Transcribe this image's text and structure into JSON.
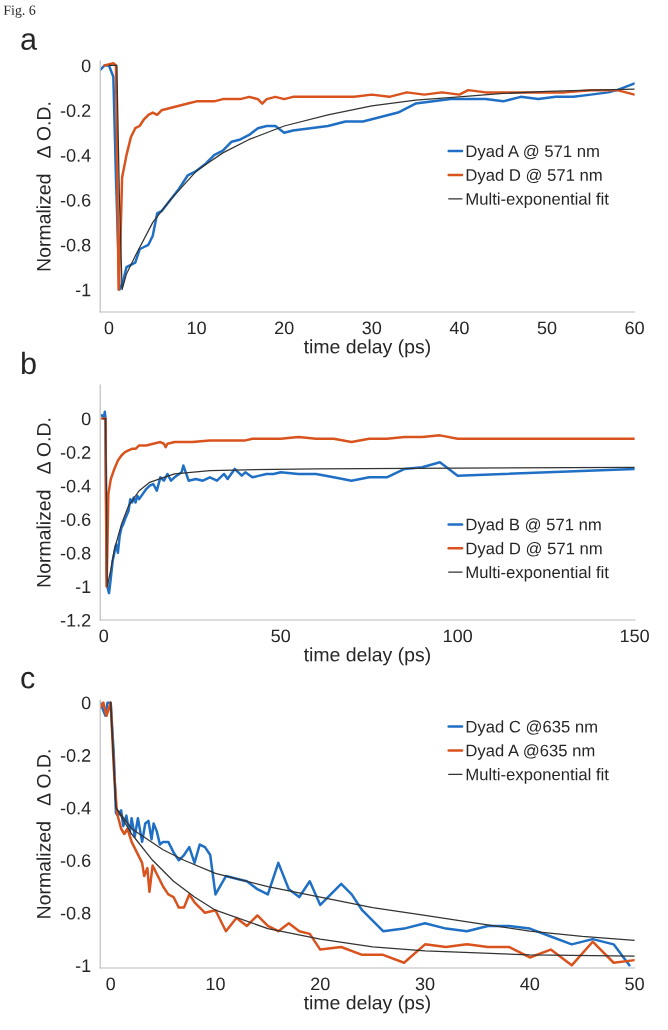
{
  "chart_data": [
    {
      "type": "line",
      "title": "a",
      "annotations": [
        "Fig. 6"
      ],
      "xlabel": "time delay (ps)",
      "ylabel": "Normalized   Δ O.D.",
      "xlim": [
        -1,
        60
      ],
      "ylim": [
        -1.1,
        0.02
      ],
      "xticks": [
        0,
        10,
        20,
        30,
        40,
        50,
        60
      ],
      "yticks": [
        0,
        -0.2,
        -0.4,
        -0.6,
        -0.8,
        -1
      ],
      "grid": false,
      "legend": "right",
      "series": [
        {
          "name": "Dyad A @ 571 nm",
          "color": "#1f6fc5",
          "x": [
            -1,
            -0.5,
            0,
            0.5,
            0.8,
            1.2,
            1.5,
            2,
            3,
            3.5,
            4,
            4.5,
            5,
            5.5,
            6,
            7,
            8,
            9,
            10,
            11,
            12,
            13,
            14,
            15,
            16,
            17,
            18,
            19,
            20,
            21,
            23,
            25,
            27,
            29,
            31,
            33,
            35,
            37,
            39,
            41,
            43,
            45,
            47,
            49,
            51,
            53,
            55,
            57,
            58,
            60
          ],
          "values": [
            -0.02,
            0,
            0,
            -0.05,
            -0.5,
            -1.0,
            -0.98,
            -0.9,
            -0.88,
            -0.82,
            -0.81,
            -0.8,
            -0.76,
            -0.66,
            -0.65,
            -0.6,
            -0.55,
            -0.49,
            -0.47,
            -0.44,
            -0.4,
            -0.38,
            -0.34,
            -0.33,
            -0.31,
            -0.28,
            -0.27,
            -0.27,
            -0.3,
            -0.29,
            -0.28,
            -0.27,
            -0.25,
            -0.25,
            -0.23,
            -0.21,
            -0.17,
            -0.16,
            -0.15,
            -0.15,
            -0.15,
            -0.16,
            -0.14,
            -0.15,
            -0.14,
            -0.14,
            -0.13,
            -0.12,
            -0.11,
            -0.08
          ]
        },
        {
          "name": "Dyad D @ 571 nm",
          "color": "#d9531e",
          "x": [
            -0.5,
            0.5,
            0.8,
            1.1,
            1.3,
            1.5,
            2,
            2.5,
            3,
            3.5,
            4,
            4.5,
            5,
            5.5,
            6,
            7,
            8,
            9,
            10,
            12,
            13,
            15,
            16,
            17,
            17.5,
            18,
            19,
            20,
            21,
            25,
            28,
            30,
            32,
            34,
            36,
            38,
            40,
            41,
            43,
            45,
            48,
            52,
            55,
            58,
            60
          ],
          "values": [
            0,
            0.01,
            0,
            -1.0,
            -0.8,
            -0.5,
            -0.4,
            -0.32,
            -0.28,
            -0.27,
            -0.24,
            -0.22,
            -0.21,
            -0.22,
            -0.2,
            -0.19,
            -0.18,
            -0.17,
            -0.16,
            -0.16,
            -0.15,
            -0.15,
            -0.14,
            -0.15,
            -0.17,
            -0.15,
            -0.14,
            -0.15,
            -0.14,
            -0.14,
            -0.14,
            -0.13,
            -0.14,
            -0.12,
            -0.13,
            -0.12,
            -0.13,
            -0.11,
            -0.12,
            -0.12,
            -0.12,
            -0.12,
            -0.11,
            -0.11,
            -0.13
          ]
        },
        {
          "name": "Multi-exponential fit",
          "color": "#333333",
          "x": [
            0,
            0.9,
            1.2,
            1.5,
            2,
            3,
            5,
            7,
            10,
            13,
            16,
            20,
            25,
            30,
            35,
            40,
            45,
            50,
            55,
            60
          ],
          "values": [
            0,
            0,
            -0.6,
            -1.0,
            -0.93,
            -0.85,
            -0.7,
            -0.6,
            -0.47,
            -0.39,
            -0.33,
            -0.27,
            -0.22,
            -0.18,
            -0.155,
            -0.14,
            -0.125,
            -0.115,
            -0.11,
            -0.105
          ]
        }
      ]
    },
    {
      "type": "line",
      "title": "b",
      "xlabel": "time delay (ps)",
      "ylabel": "Normalized   Δ O.D.",
      "xlim": [
        -1,
        150
      ],
      "ylim": [
        -1.2,
        0.2
      ],
      "xticks": [
        0,
        50,
        100,
        150
      ],
      "yticks": [
        0,
        -0.2,
        -0.4,
        -0.6,
        -0.8,
        -1,
        -1.2
      ],
      "grid": false,
      "legend": "bottom right",
      "series": [
        {
          "name": "Dyad B @ 571 nm",
          "color": "#1f6fc5",
          "x": [
            -0.5,
            0,
            0.3,
            0.5,
            0.8,
            1,
            1.5,
            2,
            2.5,
            3,
            3.5,
            4,
            4.5,
            5,
            5.5,
            6,
            7,
            7.5,
            8,
            8.5,
            9,
            9.5,
            10,
            11,
            12,
            13,
            14,
            15,
            16,
            17,
            18,
            19,
            20,
            22,
            22.5,
            24,
            26,
            28,
            30,
            32,
            34,
            35,
            37,
            39,
            40,
            42,
            44,
            46,
            48,
            50,
            55,
            60,
            65,
            70,
            75,
            80,
            85,
            90,
            95,
            100,
            150
          ],
          "values": [
            0.02,
            0,
            0.04,
            0,
            -0.9,
            -1.0,
            -1.04,
            -0.95,
            -0.85,
            -0.8,
            -0.75,
            -0.8,
            -0.7,
            -0.65,
            -0.63,
            -0.6,
            -0.55,
            -0.48,
            -0.5,
            -0.47,
            -0.5,
            -0.46,
            -0.48,
            -0.45,
            -0.42,
            -0.4,
            -0.39,
            -0.43,
            -0.35,
            -0.37,
            -0.33,
            -0.37,
            -0.35,
            -0.32,
            -0.28,
            -0.37,
            -0.36,
            -0.37,
            -0.35,
            -0.37,
            -0.33,
            -0.36,
            -0.3,
            -0.34,
            -0.32,
            -0.35,
            -0.34,
            -0.33,
            -0.33,
            -0.32,
            -0.33,
            -0.33,
            -0.35,
            -0.37,
            -0.35,
            -0.35,
            -0.3,
            -0.29,
            -0.26,
            -0.34,
            -0.3
          ]
        },
        {
          "name": "Dyad D @ 571 nm",
          "color": "#d9531e",
          "x": [
            -0.5,
            0.5,
            0.8,
            1,
            1.3,
            2,
            3,
            4,
            5,
            6,
            7,
            8,
            9,
            10,
            12,
            14,
            16,
            17,
            17.5,
            18,
            20,
            25,
            30,
            35,
            40,
            42,
            45,
            50,
            55,
            60,
            65,
            70,
            75,
            80,
            85,
            90,
            95,
            100,
            150
          ],
          "values": [
            0,
            0,
            -1.0,
            -0.8,
            -0.45,
            -0.36,
            -0.3,
            -0.25,
            -0.22,
            -0.2,
            -0.19,
            -0.18,
            -0.18,
            -0.16,
            -0.16,
            -0.15,
            -0.14,
            -0.15,
            -0.17,
            -0.15,
            -0.14,
            -0.14,
            -0.13,
            -0.13,
            -0.13,
            -0.12,
            -0.12,
            -0.12,
            -0.11,
            -0.12,
            -0.12,
            -0.14,
            -0.12,
            -0.12,
            -0.11,
            -0.11,
            -0.1,
            -0.12,
            -0.12
          ]
        },
        {
          "name": "Multi-exponential fit",
          "color": "#333333",
          "x": [
            0,
            0.5,
            0.8,
            1,
            2,
            3,
            5,
            7,
            10,
            13,
            17,
            20,
            30,
            40,
            60,
            100,
            150
          ],
          "values": [
            0,
            0,
            -0.5,
            -1.0,
            -0.9,
            -0.78,
            -0.63,
            -0.52,
            -0.43,
            -0.38,
            -0.35,
            -0.33,
            -0.31,
            -0.305,
            -0.3,
            -0.295,
            -0.29
          ]
        }
      ]
    },
    {
      "type": "line",
      "title": "c",
      "xlabel": "time delay (ps)",
      "ylabel": "Normalized   Δ O.D.",
      "xlim": [
        -1,
        50
      ],
      "ylim": [
        -1.01,
        0.01
      ],
      "xticks": [
        0,
        10,
        20,
        30,
        40,
        50
      ],
      "yticks": [
        0,
        -0.2,
        -0.4,
        -0.6,
        -0.8,
        -1
      ],
      "grid": false,
      "legend": "top right",
      "series": [
        {
          "name": "Dyad C @635 nm",
          "color": "#1f6fc5",
          "x": [
            -1,
            -0.5,
            -0.3,
            0,
            0.3,
            0.5,
            0.7,
            1,
            1.2,
            1.5,
            1.8,
            2,
            2.3,
            2.6,
            3,
            3.3,
            3.6,
            3.9,
            4.1,
            4.4,
            4.7,
            5,
            5.5,
            6,
            6.5,
            7,
            7.5,
            8,
            8.5,
            9,
            9.5,
            10,
            11,
            12,
            13,
            14,
            15,
            16,
            17,
            18,
            19,
            20,
            21,
            22,
            23,
            24,
            25,
            26,
            28,
            30,
            32,
            34,
            36,
            38,
            40,
            42,
            44,
            46,
            48,
            49.5
          ],
          "values": [
            0,
            -0.05,
            0,
            0,
            -0.2,
            -0.42,
            -0.43,
            -0.41,
            -0.47,
            -0.43,
            -0.5,
            -0.44,
            -0.51,
            -0.44,
            -0.53,
            -0.46,
            -0.45,
            -0.52,
            -0.46,
            -0.49,
            -0.54,
            -0.53,
            -0.53,
            -0.57,
            -0.6,
            -0.58,
            -0.55,
            -0.61,
            -0.54,
            -0.55,
            -0.58,
            -0.73,
            -0.66,
            -0.67,
            -0.68,
            -0.71,
            -0.73,
            -0.61,
            -0.71,
            -0.74,
            -0.68,
            -0.77,
            -0.73,
            -0.69,
            -0.73,
            -0.79,
            -0.83,
            -0.87,
            -0.86,
            -0.84,
            -0.86,
            -0.87,
            -0.85,
            -0.85,
            -0.86,
            -0.89,
            -0.92,
            -0.9,
            -0.92,
            -1.0
          ]
        },
        {
          "name": "Dyad A @635 nm",
          "color": "#d9531e",
          "x": [
            -1,
            -0.7,
            -0.4,
            0,
            0.3,
            0.6,
            1,
            1.3,
            1.6,
            2,
            2.5,
            3,
            3.2,
            3.5,
            3.7,
            4,
            4.5,
            5,
            5.5,
            6,
            6.5,
            7,
            7.5,
            8,
            9,
            10,
            11,
            12,
            13,
            14,
            15,
            16,
            17,
            18,
            19,
            20,
            22,
            24,
            26,
            28,
            30,
            32,
            34,
            36,
            38,
            40,
            42,
            44,
            46,
            48,
            50
          ],
          "values": [
            -0.02,
            0,
            -0.05,
            0,
            -0.25,
            -0.42,
            -0.48,
            -0.5,
            -0.48,
            -0.53,
            -0.57,
            -0.61,
            -0.66,
            -0.63,
            -0.72,
            -0.62,
            -0.66,
            -0.7,
            -0.73,
            -0.74,
            -0.78,
            -0.78,
            -0.73,
            -0.76,
            -0.8,
            -0.79,
            -0.87,
            -0.82,
            -0.85,
            -0.81,
            -0.85,
            -0.87,
            -0.84,
            -0.87,
            -0.88,
            -0.94,
            -0.93,
            -0.96,
            -0.96,
            -0.99,
            -0.92,
            -0.93,
            -0.92,
            -0.93,
            -0.93,
            -0.97,
            -0.94,
            -1.0,
            -0.91,
            -0.99,
            -0.98
          ]
        },
        {
          "name": "Multi-exponential fit",
          "color": "#333333",
          "x": [
            0,
            0.5,
            2,
            5,
            7,
            10,
            15,
            20,
            25,
            30,
            35,
            40,
            45,
            50
          ],
          "values": [
            0,
            -0.4,
            -0.48,
            -0.56,
            -0.6,
            -0.65,
            -0.7,
            -0.74,
            -0.78,
            -0.81,
            -0.84,
            -0.87,
            -0.89,
            -0.905
          ]
        },
        {
          "color": "#333333",
          "x": [
            0,
            0.5,
            2,
            4,
            6,
            8,
            10,
            15,
            20,
            25,
            30,
            40,
            50
          ],
          "values": [
            0,
            -0.4,
            -0.5,
            -0.6,
            -0.68,
            -0.74,
            -0.79,
            -0.86,
            -0.9,
            -0.93,
            -0.945,
            -0.96,
            -0.965
          ]
        }
      ]
    }
  ]
}
